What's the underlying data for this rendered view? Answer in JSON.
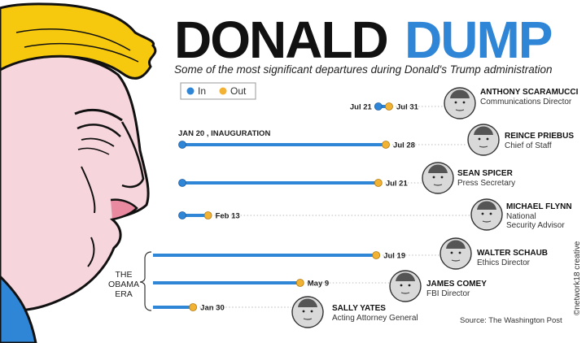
{
  "header": {
    "title_part1": "DONALD",
    "title_part2": "DUMP",
    "subtitle": "Some of the most significant departures during Donald's Trump administration"
  },
  "legend": {
    "in_label": "In",
    "out_label": "Out"
  },
  "colors": {
    "bar": "#2f86d6",
    "in_dot": "#2f86d6",
    "out_dot": "#f2b233",
    "title_blue": "#2f86d6"
  },
  "chart_data": {
    "type": "timeline",
    "title": "DONALD DUMP",
    "subtitle": "Some of the most significant departures during Donald's Trump administration",
    "legend": [
      "In",
      "Out"
    ],
    "inauguration_label": "JAN 20 , INAUGURATION",
    "era_label": [
      "THE",
      "OBAMA",
      "ERA"
    ],
    "source": "Source: The Washington Post",
    "entries": [
      {
        "name": "ANTHONY SCARAMUCCI",
        "role": [
          "Communications Director"
        ],
        "start_label": "Jul 21",
        "end_label": "Jul 31",
        "start_day": 183,
        "end_day": 193,
        "obama_era": false
      },
      {
        "name": "REINCE PRIEBUS",
        "role": [
          "Chief of Staff"
        ],
        "start_label": "",
        "end_label": "Jul 28",
        "start_day": 0,
        "end_day": 190,
        "obama_era": false
      },
      {
        "name": "SEAN SPICER",
        "role": [
          "Press Secretary"
        ],
        "start_label": "",
        "end_label": "Jul 21",
        "start_day": 0,
        "end_day": 183,
        "obama_era": false
      },
      {
        "name": "MICHAEL FLYNN",
        "role": [
          "National",
          "Security Advisor"
        ],
        "start_label": "",
        "end_label": "Feb 13",
        "start_day": 0,
        "end_day": 24,
        "obama_era": false
      },
      {
        "name": "WALTER SCHAUB",
        "role": [
          "Ethics Director"
        ],
        "start_label": "",
        "end_label": "Jul 19",
        "start_day": -25,
        "end_day": 181,
        "obama_era": true
      },
      {
        "name": "JAMES COMEY",
        "role": [
          "FBI Director"
        ],
        "start_label": "",
        "end_label": "May 9",
        "start_day": -25,
        "end_day": 110,
        "obama_era": true
      },
      {
        "name": "SALLY YATES",
        "role": [
          "Acting Attorney General"
        ],
        "start_label": "",
        "end_label": "Jan 30",
        "start_day": -25,
        "end_day": 10,
        "obama_era": true
      }
    ]
  },
  "footer": {
    "credit": "©network18 creative"
  }
}
